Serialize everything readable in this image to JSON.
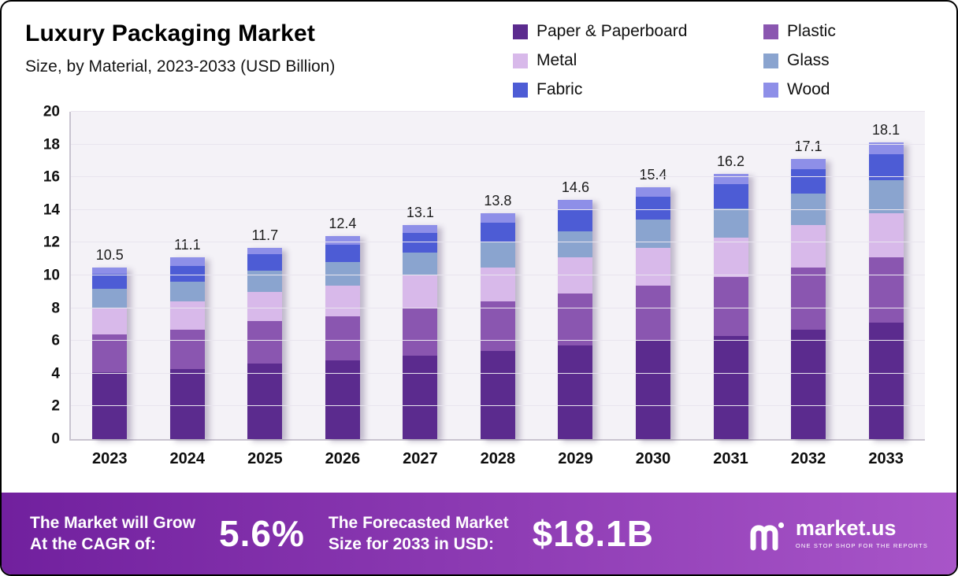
{
  "header": {
    "title": "Luxury Packaging Market",
    "subtitle": "Size, by Material, 2023-2033 (USD Billion)"
  },
  "chart_data": {
    "type": "bar",
    "stacked": true,
    "title": "Luxury Packaging Market Size, by Material, 2023-2033 (USD Billion)",
    "categories": [
      "2023",
      "2024",
      "2025",
      "2026",
      "2027",
      "2028",
      "2029",
      "2030",
      "2031",
      "2032",
      "2033"
    ],
    "totals": [
      10.5,
      11.1,
      11.7,
      12.4,
      13.1,
      13.8,
      14.6,
      15.4,
      16.2,
      17.1,
      18.1
    ],
    "series": [
      {
        "name": "Paper & Paperboard",
        "color": "#5b2b8e",
        "values": [
          4.1,
          4.3,
          4.6,
          4.8,
          5.1,
          5.4,
          5.7,
          6.0,
          6.3,
          6.7,
          7.1
        ]
      },
      {
        "name": "Plastic",
        "color": "#8a56b0",
        "values": [
          2.3,
          2.4,
          2.6,
          2.7,
          2.9,
          3.0,
          3.2,
          3.4,
          3.6,
          3.8,
          4.0
        ]
      },
      {
        "name": "Metal",
        "color": "#d8b9ea",
        "values": [
          1.6,
          1.7,
          1.8,
          1.9,
          2.0,
          2.1,
          2.2,
          2.3,
          2.4,
          2.6,
          2.7
        ]
      },
      {
        "name": "Glass",
        "color": "#8aa4cf",
        "values": [
          1.2,
          1.2,
          1.3,
          1.4,
          1.4,
          1.5,
          1.6,
          1.7,
          1.8,
          1.9,
          2.0
        ]
      },
      {
        "name": "Fabric",
        "color": "#4d5cd5",
        "values": [
          0.9,
          1.0,
          1.0,
          1.1,
          1.2,
          1.2,
          1.3,
          1.4,
          1.5,
          1.5,
          1.6
        ]
      },
      {
        "name": "Wood",
        "color": "#8e8fe8",
        "values": [
          0.4,
          0.5,
          0.4,
          0.5,
          0.5,
          0.6,
          0.6,
          0.6,
          0.6,
          0.6,
          0.7
        ]
      }
    ],
    "xlabel": "",
    "ylabel": "",
    "ylim": [
      0,
      20
    ],
    "ytick_step": 2,
    "grid": true,
    "legend_position": "top-right"
  },
  "banner": {
    "cagr_label_line1": "The Market will Grow",
    "cagr_label_line2": "At the CAGR of:",
    "cagr_value": "5.6%",
    "forecast_label_line1": "The Forecasted Market",
    "forecast_label_line2": "Size for 2033 in USD:",
    "forecast_value": "$18.1B",
    "brand_name": "market.us",
    "brand_tagline": "ONE STOP SHOP FOR THE REPORTS"
  },
  "colors": {
    "banner_gradient_start": "#71209e",
    "banner_gradient_end": "#a855c8"
  }
}
